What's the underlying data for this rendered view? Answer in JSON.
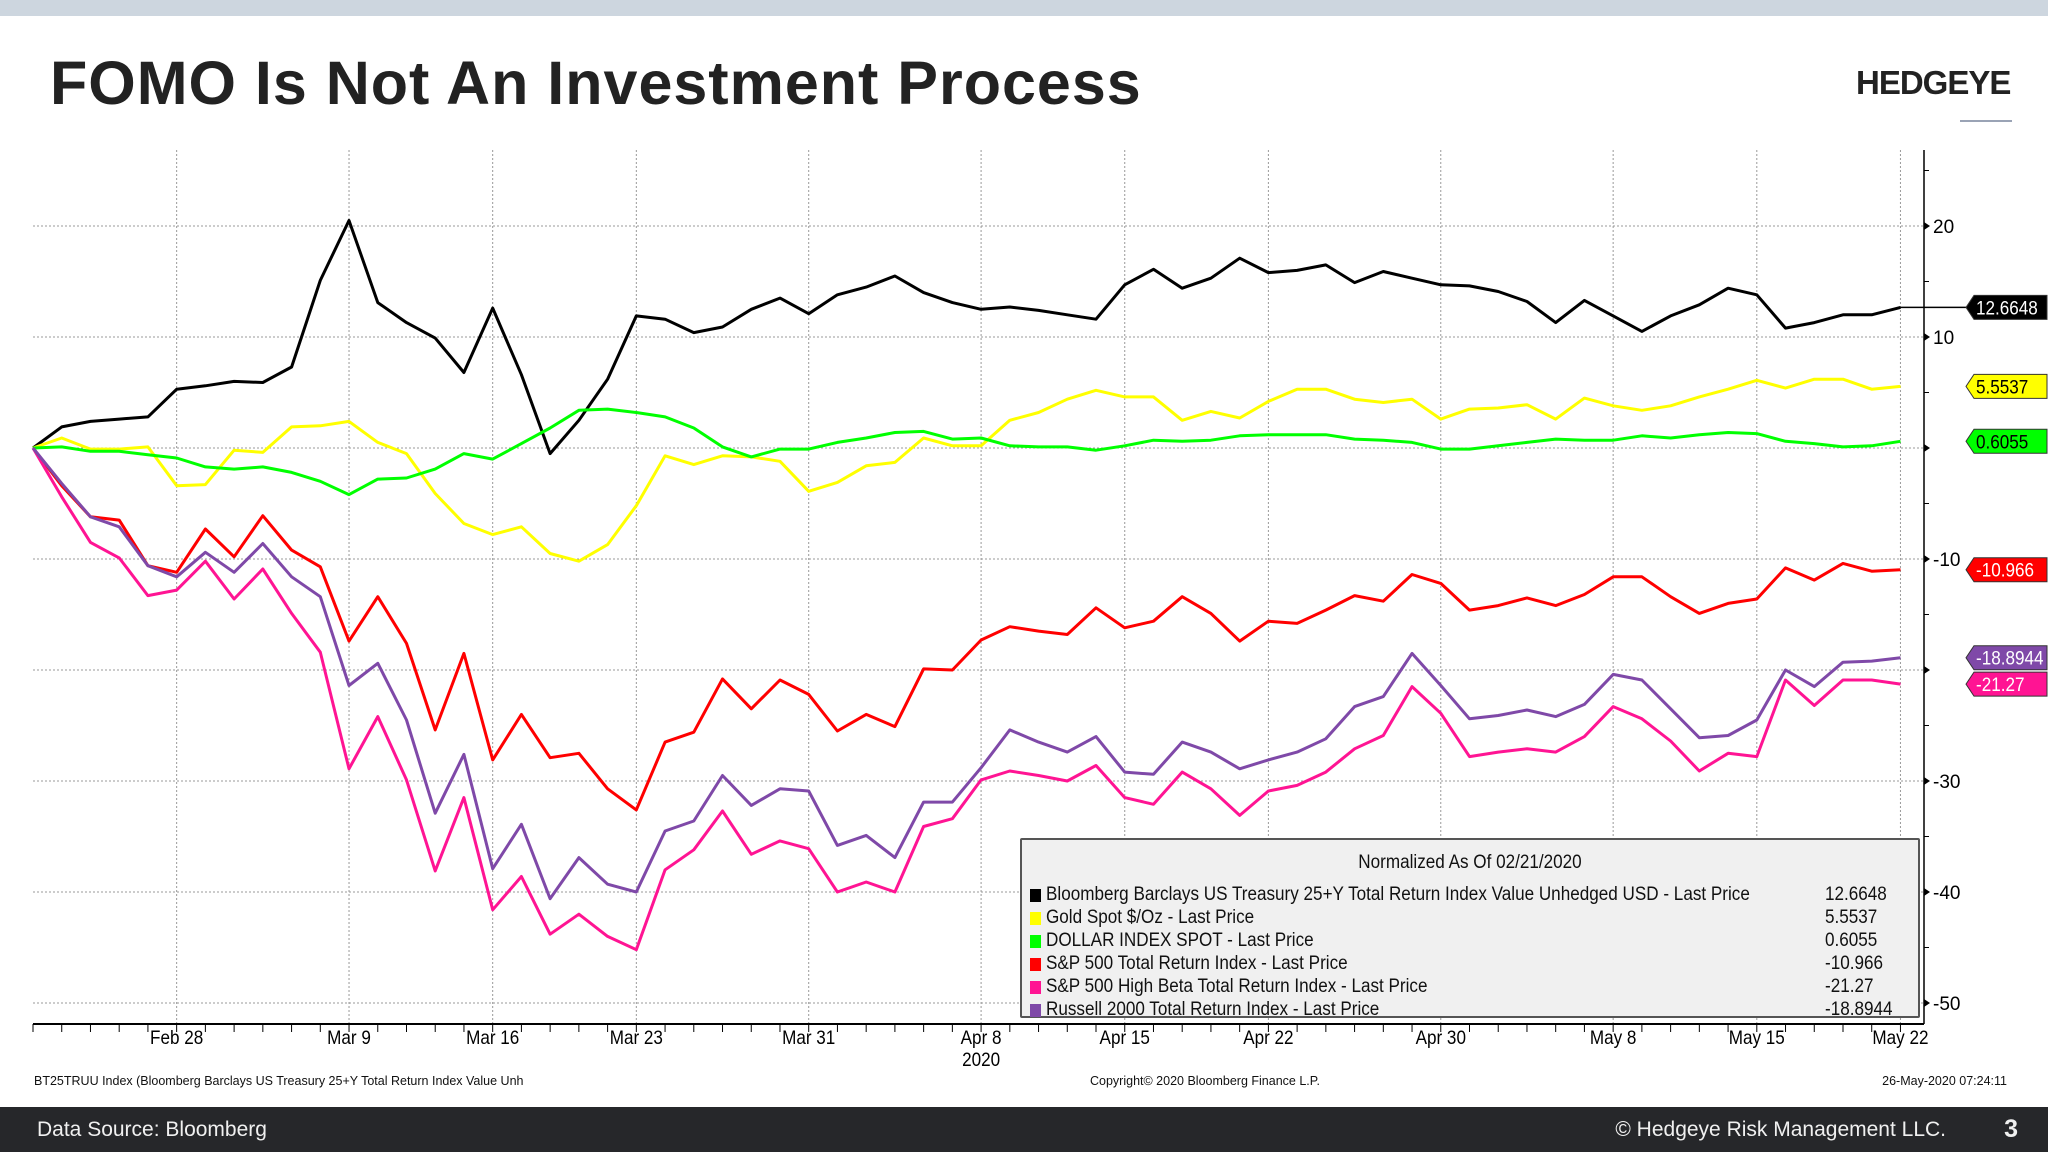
{
  "header": {
    "title": "FOMO Is Not An Investment Process",
    "logo": "HEDGEYE"
  },
  "footer": {
    "source": "Data Source: Bloomberg",
    "copyright": "© Hedgeye Risk Management LLC.",
    "page": "3"
  },
  "chart_meta": {
    "ticker_note": "BT25TRUU Index (Bloomberg Barclays US Treasury 25+Y Total Return Index Value Unh",
    "bloomberg_copyright": "Copyright© 2020 Bloomberg Finance L.P.",
    "timestamp": "26-May-2020 07:24:11"
  },
  "chart_data": {
    "type": "line",
    "legend_title": "Normalized As Of 02/21/2020",
    "legend_position": "bottom-right",
    "grid": true,
    "y_axis_side": "right",
    "ylim": [
      -53,
      27
    ],
    "yticks": [
      20,
      10,
      0,
      -10,
      -20,
      -30,
      -40,
      -50
    ],
    "ytick_labels": [
      "20",
      "10",
      "",
      "-10",
      "",
      "-30",
      "-40",
      "-50"
    ],
    "xtick_labels": [
      {
        "label": "Feb 28",
        "date": "2020-02-28"
      },
      {
        "label": "Mar 9",
        "date": "2020-03-09"
      },
      {
        "label": "Mar 16",
        "date": "2020-03-16"
      },
      {
        "label": "Mar 23",
        "date": "2020-03-23"
      },
      {
        "label": "Mar 31",
        "date": "2020-03-31"
      },
      {
        "label": "Apr 8",
        "date": "2020-04-08"
      },
      {
        "label": "Apr 15",
        "date": "2020-04-15"
      },
      {
        "label": "Apr 22",
        "date": "2020-04-22"
      },
      {
        "label": "Apr 30",
        "date": "2020-04-30"
      },
      {
        "label": "May 8",
        "date": "2020-05-08"
      },
      {
        "label": "May 15",
        "date": "2020-05-15"
      },
      {
        "label": "May 22",
        "date": "2020-05-22"
      }
    ],
    "year_label": "2020",
    "x": [
      "2020-02-21",
      "2020-02-24",
      "2020-02-25",
      "2020-02-26",
      "2020-02-27",
      "2020-02-28",
      "2020-03-02",
      "2020-03-03",
      "2020-03-04",
      "2020-03-05",
      "2020-03-06",
      "2020-03-09",
      "2020-03-10",
      "2020-03-11",
      "2020-03-12",
      "2020-03-13",
      "2020-03-16",
      "2020-03-17",
      "2020-03-18",
      "2020-03-19",
      "2020-03-20",
      "2020-03-23",
      "2020-03-24",
      "2020-03-25",
      "2020-03-26",
      "2020-03-27",
      "2020-03-30",
      "2020-03-31",
      "2020-04-01",
      "2020-04-02",
      "2020-04-03",
      "2020-04-06",
      "2020-04-07",
      "2020-04-08",
      "2020-04-09",
      "2020-04-10",
      "2020-04-13",
      "2020-04-14",
      "2020-04-15",
      "2020-04-16",
      "2020-04-17",
      "2020-04-20",
      "2020-04-21",
      "2020-04-22",
      "2020-04-23",
      "2020-04-24",
      "2020-04-27",
      "2020-04-28",
      "2020-04-29",
      "2020-04-30",
      "2020-05-01",
      "2020-05-04",
      "2020-05-05",
      "2020-05-06",
      "2020-05-07",
      "2020-05-08",
      "2020-05-11",
      "2020-05-12",
      "2020-05-13",
      "2020-05-14",
      "2020-05-15",
      "2020-05-18",
      "2020-05-19",
      "2020-05-20",
      "2020-05-21",
      "2020-05-22"
    ],
    "series": [
      {
        "name": "Bloomberg Barclays US Treasury 25+Y Total Return Index Value Unhedged USD - Last Price",
        "last": "12.6648",
        "color": "#000000",
        "badge_text": "#ffffff",
        "values": [
          0,
          1.9,
          2.4,
          2.6,
          2.8,
          5.3,
          5.6,
          6.0,
          5.9,
          7.3,
          15.1,
          20.5,
          13.1,
          11.3,
          9.9,
          6.8,
          12.6,
          6.6,
          -0.5,
          2.5,
          6.2,
          11.9,
          11.6,
          10.4,
          10.9,
          12.5,
          13.5,
          12.1,
          13.8,
          14.5,
          15.5,
          14.0,
          13.1,
          12.5,
          12.7,
          12.4,
          12.0,
          11.6,
          14.7,
          16.1,
          14.4,
          15.3,
          17.1,
          15.8,
          16.0,
          16.5,
          14.9,
          15.9,
          15.3,
          14.7,
          14.6,
          14.1,
          13.2,
          11.3,
          13.3,
          11.9,
          10.5,
          11.9,
          12.9,
          14.4,
          13.8,
          10.8,
          11.3,
          12.0,
          12.0,
          12.6648
        ]
      },
      {
        "name": "Gold Spot $/Oz - Last Price",
        "last": "5.5537",
        "color": "#ffff00",
        "badge_text": "#000000",
        "values": [
          0,
          0.9,
          -0.1,
          -0.1,
          0.1,
          -3.4,
          -3.3,
          -0.2,
          -0.4,
          1.9,
          2.0,
          2.4,
          0.5,
          -0.5,
          -4.1,
          -6.8,
          -7.8,
          -7.1,
          -9.5,
          -10.2,
          -8.7,
          -5.2,
          -0.7,
          -1.5,
          -0.7,
          -0.8,
          -1.2,
          -3.9,
          -3.1,
          -1.6,
          -1.3,
          0.9,
          0.2,
          0.2,
          2.5,
          3.2,
          4.4,
          5.2,
          4.6,
          4.6,
          2.5,
          3.3,
          2.7,
          4.2,
          5.3,
          5.3,
          4.4,
          4.1,
          4.4,
          2.6,
          3.5,
          3.6,
          3.9,
          2.6,
          4.5,
          3.8,
          3.4,
          3.8,
          4.6,
          5.3,
          6.1,
          5.4,
          6.2,
          6.2,
          5.3,
          5.5537
        ]
      },
      {
        "name": "DOLLAR INDEX SPOT - Last Price",
        "last": "0.6055",
        "color": "#00ff00",
        "badge_text": "#000000",
        "values": [
          0,
          0.1,
          -0.3,
          -0.3,
          -0.6,
          -0.9,
          -1.7,
          -1.9,
          -1.7,
          -2.2,
          -3.0,
          -4.2,
          -2.8,
          -2.7,
          -1.9,
          -0.5,
          -1.0,
          0.4,
          1.8,
          3.4,
          3.5,
          3.2,
          2.8,
          1.8,
          0.1,
          -0.8,
          -0.1,
          -0.1,
          0.5,
          0.9,
          1.4,
          1.5,
          0.8,
          0.9,
          0.2,
          0.1,
          0.1,
          -0.2,
          0.2,
          0.7,
          0.6,
          0.7,
          1.1,
          1.2,
          1.2,
          1.2,
          0.8,
          0.7,
          0.5,
          -0.1,
          -0.1,
          0.2,
          0.5,
          0.8,
          0.7,
          0.7,
          1.1,
          0.9,
          1.2,
          1.4,
          1.3,
          0.6,
          0.4,
          0.1,
          0.2,
          0.6055
        ]
      },
      {
        "name": "S&P 500 Total Return Index - Last Price",
        "last": "-10.966",
        "color": "#ff0000",
        "badge_text": "#ffffff",
        "values": [
          0,
          -3.4,
          -6.2,
          -6.5,
          -10.6,
          -11.2,
          -7.3,
          -9.8,
          -6.1,
          -9.2,
          -10.7,
          -17.4,
          -13.4,
          -17.6,
          -25.4,
          -18.5,
          -28.1,
          -24.0,
          -27.9,
          -27.5,
          -30.7,
          -32.6,
          -26.5,
          -25.6,
          -20.8,
          -23.5,
          -20.9,
          -22.2,
          -25.5,
          -24.0,
          -25.1,
          -19.9,
          -20.0,
          -17.3,
          -16.1,
          -16.5,
          -16.8,
          -14.4,
          -16.2,
          -15.6,
          -13.4,
          -14.9,
          -17.4,
          -15.6,
          -15.8,
          -14.6,
          -13.3,
          -13.8,
          -11.4,
          -12.2,
          -14.6,
          -14.2,
          -13.5,
          -14.2,
          -13.2,
          -11.6,
          -11.6,
          -13.4,
          -14.9,
          -14.0,
          -13.6,
          -10.8,
          -11.9,
          -10.4,
          -11.1,
          -10.966
        ]
      },
      {
        "name": "S&P 500 High Beta Total Return Index - Last Price",
        "last": "-21.27",
        "color": "#ff1493",
        "badge_text": "#ffffff",
        "values": [
          0,
          -4.4,
          -8.5,
          -9.9,
          -13.3,
          -12.8,
          -10.2,
          -13.6,
          -10.9,
          -14.9,
          -18.4,
          -28.9,
          -24.2,
          -29.9,
          -38.1,
          -31.5,
          -41.6,
          -38.6,
          -43.8,
          -42.0,
          -44.0,
          -45.2,
          -38.0,
          -36.2,
          -32.7,
          -36.6,
          -35.4,
          -36.1,
          -40.0,
          -39.1,
          -40.0,
          -34.1,
          -33.4,
          -29.9,
          -29.1,
          -29.5,
          -30.0,
          -28.6,
          -31.5,
          -32.1,
          -29.2,
          -30.7,
          -33.1,
          -30.9,
          -30.4,
          -29.2,
          -27.1,
          -25.9,
          -21.5,
          -23.9,
          -27.8,
          -27.4,
          -27.1,
          -27.4,
          -26.0,
          -23.3,
          -24.4,
          -26.4,
          -29.1,
          -27.5,
          -27.8,
          -20.9,
          -23.2,
          -20.9,
          -20.9,
          -21.27
        ]
      },
      {
        "name": "Russell 2000 Total Return Index - Last Price",
        "last": "-18.8944",
        "color": "#7f49a8",
        "badge_text": "#ffffff",
        "values": [
          0,
          -3.2,
          -6.2,
          -7.1,
          -10.6,
          -11.6,
          -9.4,
          -11.2,
          -8.6,
          -11.6,
          -13.4,
          -21.4,
          -19.4,
          -24.5,
          -32.9,
          -27.6,
          -37.9,
          -33.9,
          -40.6,
          -36.9,
          -39.3,
          -40.0,
          -34.5,
          -33.6,
          -29.5,
          -32.2,
          -30.7,
          -30.9,
          -35.8,
          -34.9,
          -36.9,
          -31.9,
          -31.9,
          -28.8,
          -25.4,
          -26.5,
          -27.4,
          -26.0,
          -29.2,
          -29.4,
          -26.5,
          -27.4,
          -28.9,
          -28.1,
          -27.4,
          -26.2,
          -23.3,
          -22.4,
          -18.5,
          -21.4,
          -24.4,
          -24.1,
          -23.6,
          -24.2,
          -23.1,
          -20.4,
          -20.9,
          -23.5,
          -26.1,
          -25.9,
          -24.5,
          -20.0,
          -21.5,
          -19.3,
          -19.2,
          -18.8944
        ]
      }
    ]
  }
}
